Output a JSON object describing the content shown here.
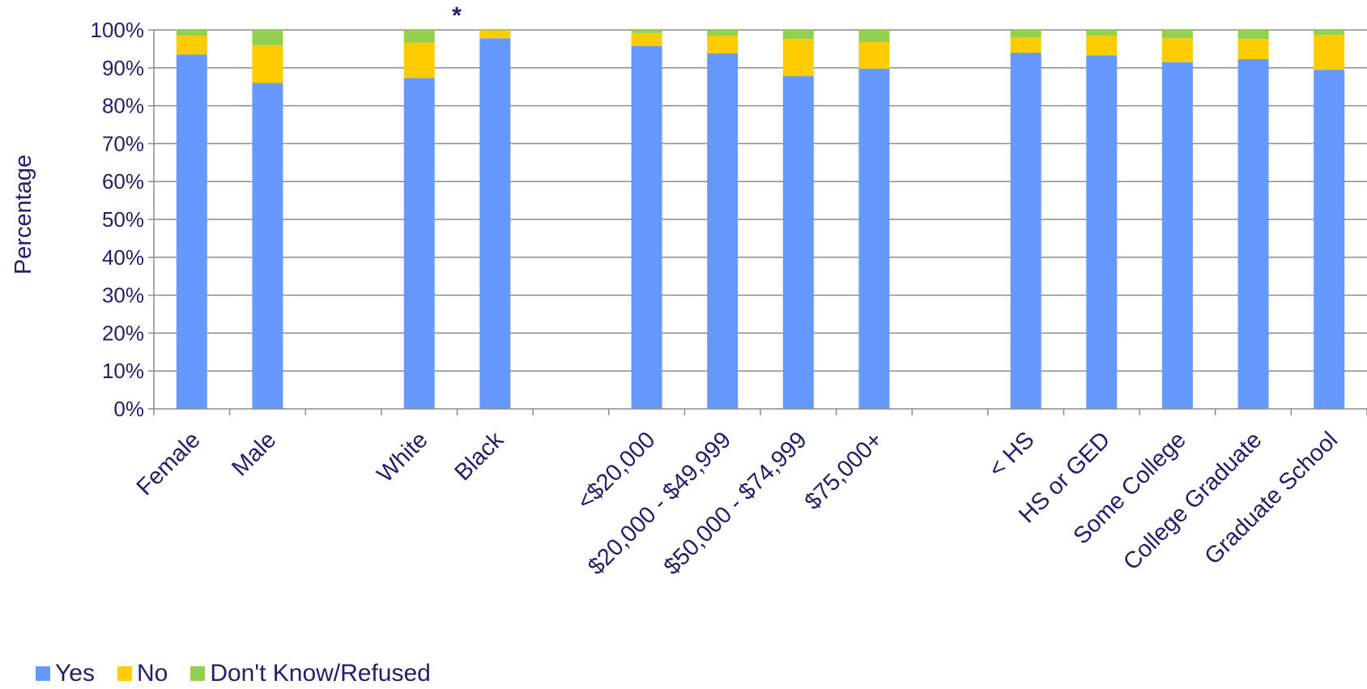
{
  "chart_data": {
    "type": "bar",
    "stacked": true,
    "title": "",
    "xlabel": "",
    "ylabel": "Percentage",
    "ylim": [
      0,
      100
    ],
    "yticks": [
      "0%",
      "10%",
      "20%",
      "30%",
      "40%",
      "50%",
      "60%",
      "70%",
      "80%",
      "90%",
      "100%"
    ],
    "categories": [
      "Female",
      "Male",
      "",
      "White",
      "Black",
      "",
      "<$20,000",
      "$20,000 - $49,999",
      "$50,000 - $74,999",
      "$75,000+",
      "",
      "< HS",
      "HS or GED",
      "Some College",
      "College Graduate",
      "Graduate School"
    ],
    "series": [
      {
        "name": "Yes",
        "color": "#6699ff",
        "values": [
          93.5,
          86,
          null,
          87.3,
          97.8,
          null,
          95.8,
          93.8,
          87.8,
          89.8,
          null,
          94,
          93.3,
          91.5,
          92.3,
          89.5
        ]
      },
      {
        "name": "No",
        "color": "#ffcc00",
        "values": [
          5,
          10,
          null,
          9.4,
          2.1,
          null,
          3.4,
          4.7,
          9.8,
          7,
          null,
          4,
          5.2,
          6.3,
          5.3,
          9.2
        ]
      },
      {
        "name": "Don't Know/Refused",
        "color": "#92d050",
        "values": [
          1.5,
          4,
          null,
          3.3,
          0.1,
          null,
          0.8,
          1.5,
          2.4,
          3.2,
          null,
          2,
          1.5,
          2.2,
          2.4,
          1.3
        ]
      }
    ],
    "annotations": [
      {
        "text": "*",
        "between": [
          "White",
          "Black"
        ]
      }
    ],
    "grid": true,
    "legend_position": "bottom-left"
  }
}
